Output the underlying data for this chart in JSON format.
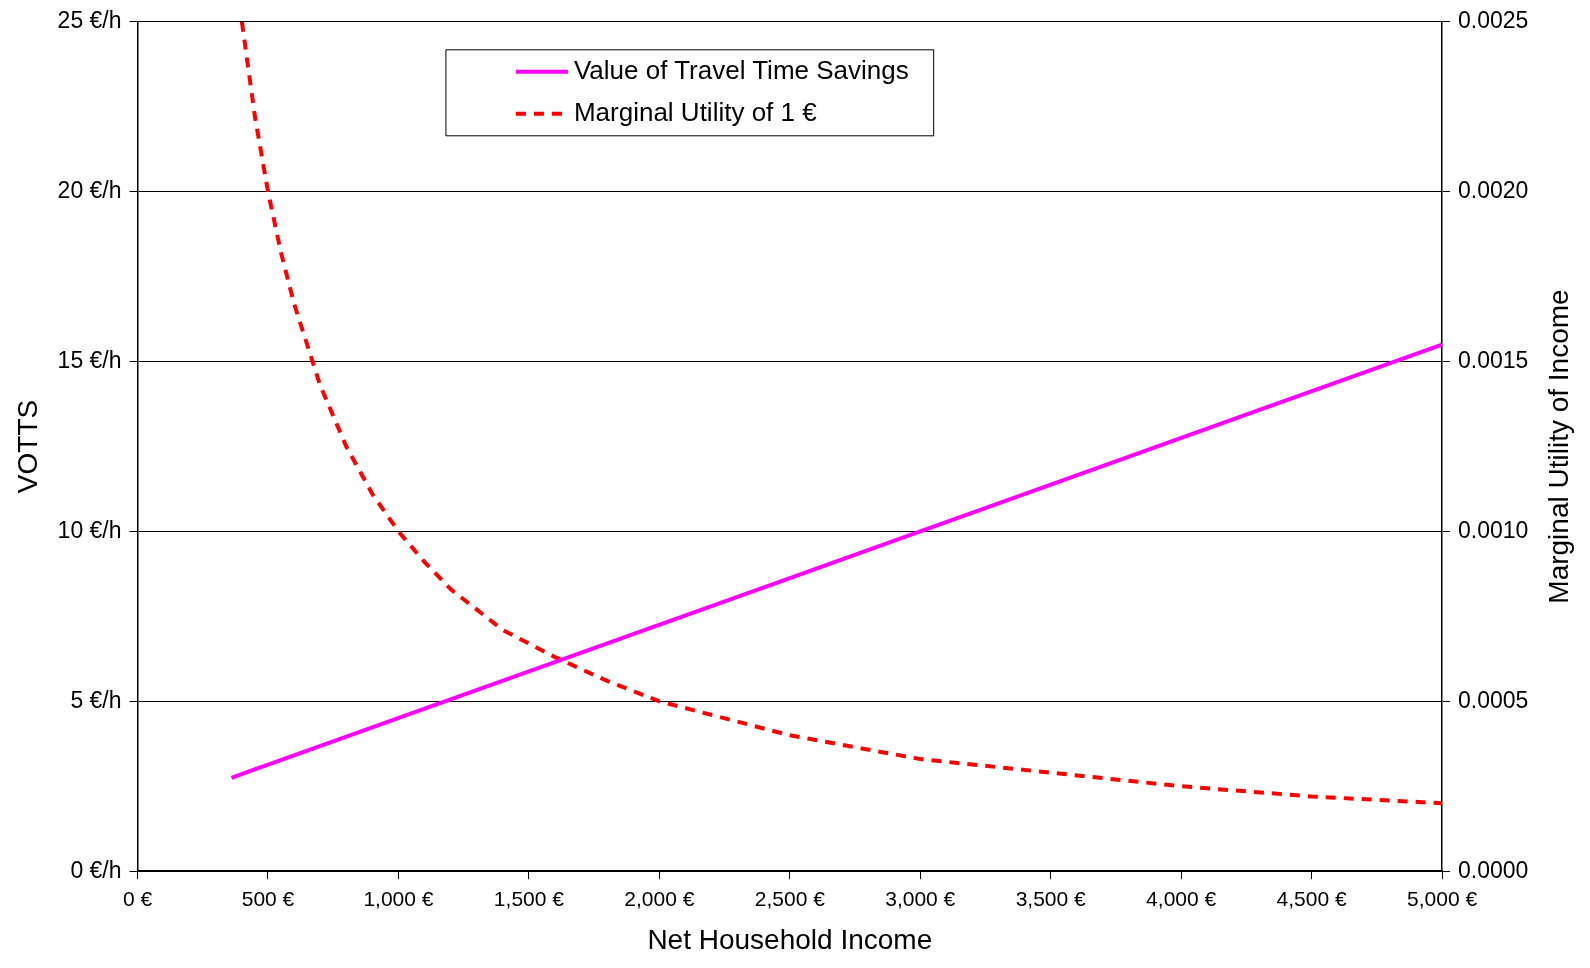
{
  "chart_data": {
    "type": "line",
    "xlabel": "Net Household Income",
    "ylabel": "VOTTS",
    "y2label": "Marginal Utility of Income",
    "xlim": [
      0,
      5000
    ],
    "xticks": [
      {
        "value": 0,
        "label": "0 €"
      },
      {
        "value": 500,
        "label": "500 €"
      },
      {
        "value": 1000,
        "label": "1,000 €"
      },
      {
        "value": 1500,
        "label": "1,500 €"
      },
      {
        "value": 2000,
        "label": "2,000 €"
      },
      {
        "value": 2500,
        "label": "2,500 €"
      },
      {
        "value": 3000,
        "label": "3,000 €"
      },
      {
        "value": 3500,
        "label": "3,500 €"
      },
      {
        "value": 4000,
        "label": "4,000 €"
      },
      {
        "value": 4500,
        "label": "4,500 €"
      },
      {
        "value": 5000,
        "label": "5,000 €"
      }
    ],
    "ylim": [
      0,
      25
    ],
    "yticks": [
      {
        "value": 0,
        "label": "0 €/h"
      },
      {
        "value": 5,
        "label": "5 €/h"
      },
      {
        "value": 10,
        "label": "10 €/h"
      },
      {
        "value": 15,
        "label": "15 €/h"
      },
      {
        "value": 20,
        "label": "20 €/h"
      },
      {
        "value": 25,
        "label": "25 €/h"
      }
    ],
    "y2lim": [
      0,
      0.0025
    ],
    "y2ticks": [
      {
        "value": 0,
        "label": "0.0000"
      },
      {
        "value": 0.0005,
        "label": "0.0005"
      },
      {
        "value": 0.001,
        "label": "0.0010"
      },
      {
        "value": 0.0015,
        "label": "0.0015"
      },
      {
        "value": 0.002,
        "label": "0.0020"
      },
      {
        "value": 0.0025,
        "label": "0.0025"
      }
    ],
    "grid": "y",
    "legend": "top",
    "marker": "none",
    "series": [
      {
        "name": "Value of Travel Time Savings",
        "color": "#ff00ff",
        "line_style": "solid",
        "x": [
          360,
          3000,
          5000
        ],
        "values": [
          2.75,
          10,
          15.5
        ]
      },
      {
        "name": "Marginal Utility of 1 €",
        "color": "#ff0000",
        "line_style": "dashed",
        "axis": "y2",
        "x": [
          400,
          450,
          500,
          550,
          600,
          700,
          800,
          900,
          1000,
          1100,
          1200,
          1400,
          1600,
          1800,
          2000,
          2500,
          3000,
          3500,
          4000,
          4500,
          5000
        ],
        "values": [
          0.0025,
          0.00222,
          0.002,
          0.00182,
          0.00167,
          0.00143,
          0.00125,
          0.00111,
          0.001,
          0.00091,
          0.00083,
          0.00071,
          0.00063,
          0.00056,
          0.0005,
          0.0004,
          0.00033,
          0.00029,
          0.00025,
          0.00022,
          0.0002
        ]
      }
    ]
  }
}
